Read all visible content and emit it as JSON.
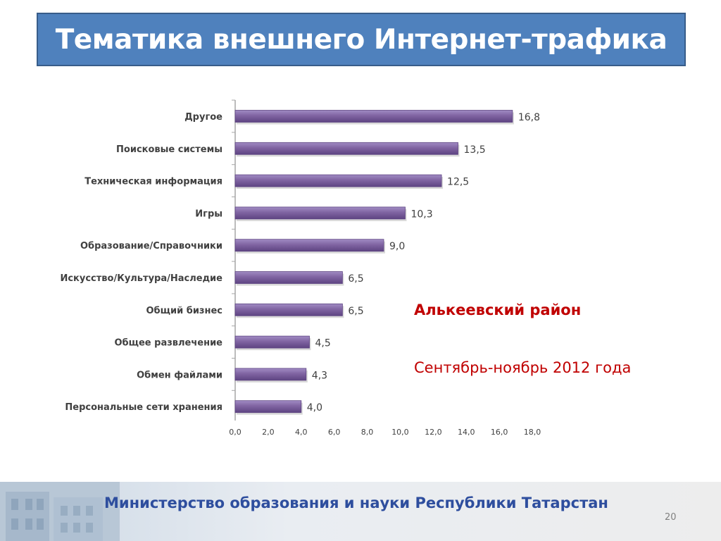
{
  "slide": {
    "title": "Тематика внешнего Интернет-трафика",
    "side_title": "Алькеевский район",
    "side_period": "Сентябрь-ноябрь 2012 года",
    "footer": "Министерство образования и науки Республики Татарстан",
    "page_number": "20"
  },
  "colors": {
    "title_bg": "#4f81bd",
    "bar": "#8064a2",
    "accent_red": "#c00000",
    "footer_text": "#2e4e9e"
  },
  "chart_data": {
    "type": "bar",
    "orientation": "horizontal",
    "categories": [
      "Другое",
      "Поисковые системы",
      "Техническая информация",
      "Игры",
      "Образование/Справочники",
      "Искусство/Культура/Наследие",
      "Общий бизнес",
      "Общее развлечение",
      "Обмен файлами",
      "Персональные сети хранения"
    ],
    "values": [
      16.8,
      13.5,
      12.5,
      10.3,
      9.0,
      6.5,
      6.5,
      4.5,
      4.3,
      4.0
    ],
    "value_labels": [
      "16,8",
      "13,5",
      "12,5",
      "10,3",
      "9,0",
      "6,5",
      "6,5",
      "4,5",
      "4,3",
      "4,0"
    ],
    "x_ticks": [
      0,
      2,
      4,
      6,
      8,
      10,
      12,
      14,
      16,
      18
    ],
    "x_tick_labels": [
      "0,0",
      "2,0",
      "4,0",
      "6,0",
      "8,0",
      "10,0",
      "12,0",
      "14,0",
      "16,0",
      "18,0"
    ],
    "xlim": [
      0,
      18
    ],
    "grid": false,
    "legend": "none"
  }
}
